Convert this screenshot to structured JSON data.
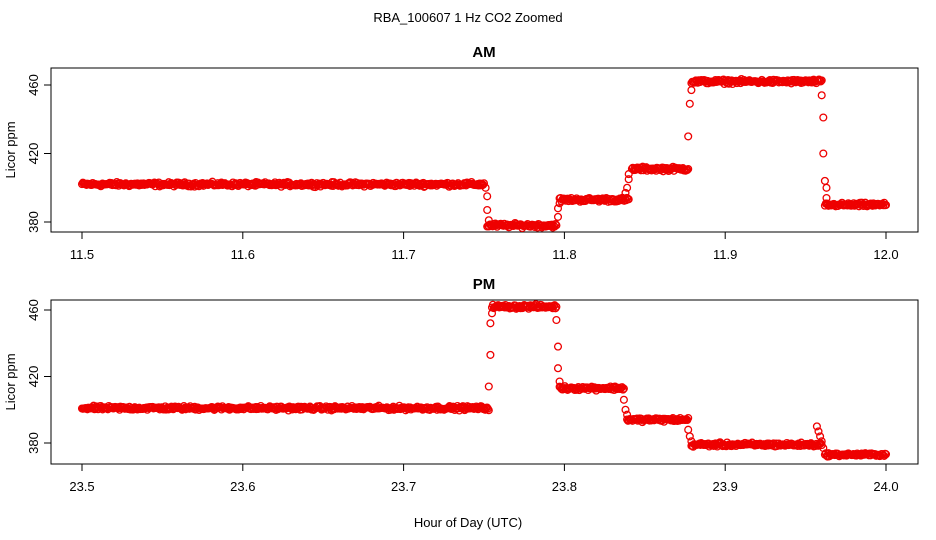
{
  "suptitle": "RBA_100607  1 Hz CO2 Zoomed",
  "xlabel": "Hour of Day (UTC)",
  "colors": {
    "points": "#ee0000",
    "axes": "#000000",
    "background": "#ffffff"
  },
  "chart_data": [
    {
      "type": "scatter",
      "title": "AM",
      "xlabel": "",
      "ylabel": "Licor ppm",
      "xlim": [
        11.5,
        12.0
      ],
      "ylim": [
        376,
        470
      ],
      "xticks": [
        "11.5",
        "11.6",
        "11.7",
        "11.8",
        "11.9",
        "12.0"
      ],
      "yticks": [
        "380",
        "420",
        "460"
      ],
      "grid": false,
      "legend": "none",
      "marker": "open circle",
      "segments": [
        {
          "x_start": 11.5,
          "x_end": 11.75,
          "y": 402,
          "noise": 1.0
        },
        {
          "x_start": 11.752,
          "x_end": 11.795,
          "y": 378,
          "noise": 1.0
        },
        {
          "x_start": 11.797,
          "x_end": 11.84,
          "y": 393,
          "noise": 1.0
        },
        {
          "x_start": 11.842,
          "x_end": 11.877,
          "y": 411,
          "noise": 1.0
        },
        {
          "x_start": 11.879,
          "x_end": 11.96,
          "y": 462,
          "noise": 1.0
        },
        {
          "x_start": 11.962,
          "x_end": 12.0,
          "y": 390,
          "noise": 1.0
        }
      ],
      "transitions": [
        {
          "x": 11.751,
          "y": 400
        },
        {
          "x": 11.752,
          "y": 395
        },
        {
          "x": 11.752,
          "y": 387
        },
        {
          "x": 11.753,
          "y": 381
        },
        {
          "x": 11.796,
          "y": 383
        },
        {
          "x": 11.796,
          "y": 388
        },
        {
          "x": 11.797,
          "y": 391
        },
        {
          "x": 11.838,
          "y": 397
        },
        {
          "x": 11.839,
          "y": 400
        },
        {
          "x": 11.84,
          "y": 405
        },
        {
          "x": 11.84,
          "y": 408
        },
        {
          "x": 11.877,
          "y": 430
        },
        {
          "x": 11.878,
          "y": 449
        },
        {
          "x": 11.879,
          "y": 457
        },
        {
          "x": 11.96,
          "y": 454
        },
        {
          "x": 11.961,
          "y": 441
        },
        {
          "x": 11.961,
          "y": 420
        },
        {
          "x": 11.962,
          "y": 404
        },
        {
          "x": 11.963,
          "y": 400
        },
        {
          "x": 11.963,
          "y": 394
        }
      ]
    },
    {
      "type": "scatter",
      "title": "PM",
      "xlabel": "Hour of Day (UTC)",
      "ylabel": "Licor ppm",
      "xlim": [
        23.5,
        24.0
      ],
      "ylim": [
        372,
        466
      ],
      "xticks": [
        "23.5",
        "23.6",
        "23.7",
        "23.8",
        "23.9",
        "24.0"
      ],
      "yticks": [
        "380",
        "420",
        "460"
      ],
      "grid": false,
      "legend": "none",
      "marker": "open circle",
      "segments": [
        {
          "x_start": 23.5,
          "x_end": 23.753,
          "y": 401,
          "noise": 1.0
        },
        {
          "x_start": 23.755,
          "x_end": 23.795,
          "y": 462,
          "noise": 1.0
        },
        {
          "x_start": 23.797,
          "x_end": 23.837,
          "y": 413,
          "noise": 1.0
        },
        {
          "x_start": 23.839,
          "x_end": 23.877,
          "y": 394,
          "noise": 1.0
        },
        {
          "x_start": 23.879,
          "x_end": 23.96,
          "y": 379,
          "noise": 1.0
        },
        {
          "x_start": 23.962,
          "x_end": 24.0,
          "y": 373,
          "noise": 0.8
        }
      ],
      "transitions": [
        {
          "x": 23.753,
          "y": 414
        },
        {
          "x": 23.754,
          "y": 433
        },
        {
          "x": 23.754,
          "y": 452
        },
        {
          "x": 23.755,
          "y": 458
        },
        {
          "x": 23.795,
          "y": 454
        },
        {
          "x": 23.796,
          "y": 438
        },
        {
          "x": 23.796,
          "y": 425
        },
        {
          "x": 23.797,
          "y": 417
        },
        {
          "x": 23.837,
          "y": 406
        },
        {
          "x": 23.838,
          "y": 400
        },
        {
          "x": 23.839,
          "y": 397
        },
        {
          "x": 23.877,
          "y": 388
        },
        {
          "x": 23.878,
          "y": 384
        },
        {
          "x": 23.879,
          "y": 381
        },
        {
          "x": 23.957,
          "y": 390
        },
        {
          "x": 23.958,
          "y": 387
        },
        {
          "x": 23.959,
          "y": 384
        },
        {
          "x": 23.96,
          "y": 381
        },
        {
          "x": 23.961,
          "y": 377
        }
      ]
    }
  ]
}
